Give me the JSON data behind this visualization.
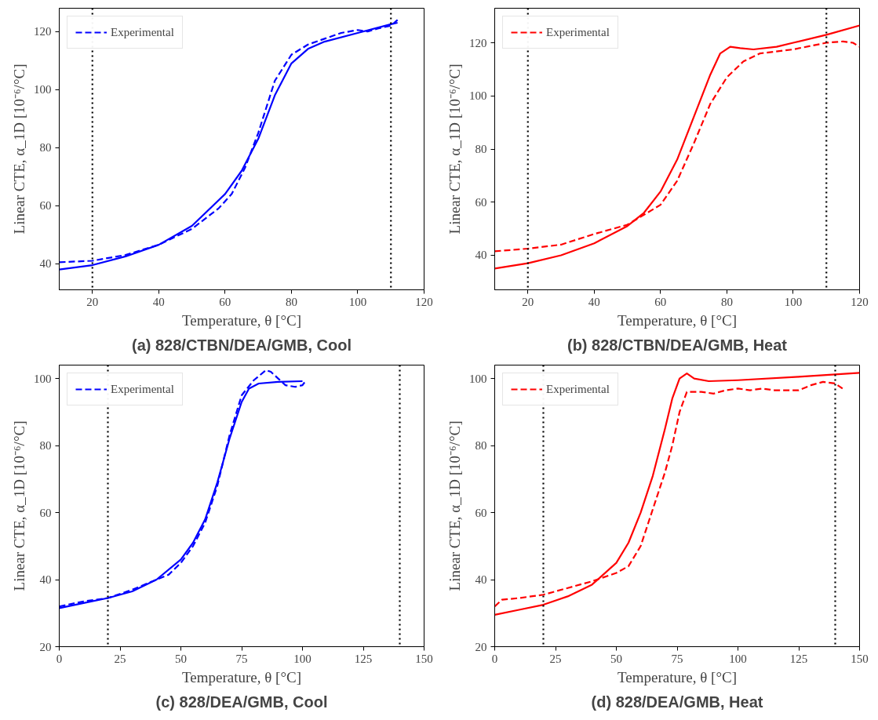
{
  "chart_data": [
    {
      "type": "line",
      "title": "(a) 828/CTBN/DEA/GMB, Cool",
      "xlabel": "Temperature, θ [°C]",
      "ylabel": "Linear CTE, α_1D [10⁻⁶/°C]",
      "xlim": [
        10,
        120
      ],
      "xticks": [
        20,
        40,
        60,
        80,
        100,
        120
      ],
      "ylim": [
        31,
        128
      ],
      "yticks": [
        40,
        60,
        80,
        100,
        120
      ],
      "grid": false,
      "legend": "top left",
      "ref_lines": [
        {
          "axis": "x",
          "value": 20,
          "color": "#000000",
          "line_style": "dotted"
        },
        {
          "axis": "x",
          "value": 110,
          "color": "#000000",
          "line_style": "dotted"
        }
      ],
      "series": [
        {
          "color": "#0000ff",
          "line_style": "solid",
          "x": [
            10,
            20,
            30,
            40,
            50,
            60,
            65,
            70,
            75,
            80,
            85,
            90,
            100,
            110,
            112
          ],
          "values": [
            38,
            39.5,
            42.5,
            46.5,
            53,
            64,
            72,
            83,
            98,
            109,
            114,
            116.5,
            119.5,
            122.5,
            123
          ]
        },
        {
          "name": "Experimental",
          "color": "#0000ff",
          "line_style": "dashed",
          "x": [
            10,
            20,
            30,
            40,
            50,
            58,
            62,
            66,
            70,
            75,
            80,
            85,
            90,
            95,
            100,
            103,
            106,
            110,
            112
          ],
          "values": [
            40.5,
            41,
            43,
            46.5,
            52,
            59,
            64,
            73,
            85,
            103,
            112,
            115.5,
            117.5,
            119.5,
            120.5,
            120,
            121,
            122,
            124
          ]
        }
      ]
    },
    {
      "type": "line",
      "title": "(b) 828/CTBN/DEA/GMB, Heat",
      "xlabel": "Temperature, θ [°C]",
      "ylabel": "Linear CTE, α_1D [10⁻⁶/°C]",
      "xlim": [
        10,
        120
      ],
      "xticks": [
        20,
        40,
        60,
        80,
        100,
        120
      ],
      "ylim": [
        27,
        133
      ],
      "yticks": [
        40,
        60,
        80,
        100,
        120
      ],
      "grid": false,
      "legend": "top left",
      "ref_lines": [
        {
          "axis": "x",
          "value": 20,
          "color": "#000000",
          "line_style": "dotted"
        },
        {
          "axis": "x",
          "value": 110,
          "color": "#000000",
          "line_style": "dotted"
        }
      ],
      "series": [
        {
          "color": "#ff0000",
          "line_style": "solid",
          "x": [
            10,
            20,
            30,
            40,
            50,
            55,
            60,
            65,
            70,
            75,
            78,
            81,
            84,
            88,
            95,
            100,
            110,
            120
          ],
          "values": [
            35,
            37,
            40,
            44.5,
            51,
            56,
            64,
            76,
            92,
            108,
            116,
            118.5,
            118,
            117.5,
            118.5,
            120,
            123,
            126.5
          ]
        },
        {
          "name": "Experimental",
          "color": "#ff0000",
          "line_style": "dashed",
          "x": [
            10,
            20,
            30,
            40,
            50,
            60,
            65,
            70,
            75,
            80,
            85,
            90,
            100,
            110,
            115,
            118,
            120
          ],
          "values": [
            41.5,
            42.5,
            44,
            48,
            51.5,
            59,
            68,
            82,
            97,
            107,
            113,
            116,
            117.5,
            120,
            120.5,
            120,
            118.5
          ]
        }
      ]
    },
    {
      "type": "line",
      "title": "(c) 828/DEA/GMB, Cool",
      "xlabel": "Temperature, θ [°C]",
      "ylabel": "Linear CTE, α_1D [10⁻⁶/°C]",
      "xlim": [
        0,
        150
      ],
      "xticks": [
        0,
        25,
        50,
        75,
        100,
        125,
        150
      ],
      "ylim": [
        20,
        104
      ],
      "yticks": [
        20,
        40,
        60,
        80,
        100
      ],
      "grid": false,
      "legend": "top left",
      "ref_lines": [
        {
          "axis": "x",
          "value": 20,
          "color": "#000000",
          "line_style": "dotted"
        },
        {
          "axis": "x",
          "value": 140,
          "color": "#000000",
          "line_style": "dotted"
        }
      ],
      "series": [
        {
          "color": "#0000ff",
          "line_style": "solid",
          "x": [
            0,
            10,
            20,
            30,
            40,
            50,
            55,
            60,
            65,
            70,
            75,
            78,
            82,
            90,
            100
          ],
          "values": [
            31.5,
            33,
            34.5,
            36.5,
            40,
            46,
            51,
            58,
            69,
            82,
            93,
            97,
            98.5,
            99,
            99.2
          ]
        },
        {
          "name": "Experimental",
          "color": "#0000ff",
          "line_style": "dashed",
          "x": [
            0,
            10,
            20,
            30,
            40,
            45,
            50,
            55,
            60,
            65,
            70,
            75,
            80,
            85,
            87,
            90,
            93,
            97,
            100,
            101
          ],
          "values": [
            32,
            33.5,
            34.5,
            37,
            40,
            41.5,
            45,
            50,
            57,
            68,
            83,
            95,
            99.5,
            102.5,
            102,
            100,
            98,
            97.5,
            98,
            99
          ]
        }
      ]
    },
    {
      "type": "line",
      "title": "(d) 828/DEA/GMB, Heat",
      "xlabel": "Temperature, θ [°C]",
      "ylabel": "Linear CTE, α_1D [10⁻⁶/°C]",
      "xlim": [
        0,
        150
      ],
      "xticks": [
        0,
        25,
        50,
        75,
        100,
        125,
        150
      ],
      "ylim": [
        20,
        104
      ],
      "yticks": [
        20,
        40,
        60,
        80,
        100
      ],
      "grid": false,
      "legend": "top left",
      "ref_lines": [
        {
          "axis": "x",
          "value": 20,
          "color": "#000000",
          "line_style": "dotted"
        },
        {
          "axis": "x",
          "value": 140,
          "color": "#000000",
          "line_style": "dotted"
        }
      ],
      "series": [
        {
          "color": "#ff0000",
          "line_style": "solid",
          "x": [
            0,
            10,
            20,
            30,
            40,
            50,
            55,
            60,
            65,
            70,
            73,
            76,
            79,
            82,
            88,
            100,
            125,
            150
          ],
          "values": [
            29.5,
            31,
            32.5,
            35,
            38.5,
            45,
            51,
            60,
            71,
            85,
            94,
            100,
            101.5,
            100,
            99.2,
            99.5,
            100.5,
            101.7
          ]
        },
        {
          "name": "Experimental",
          "color": "#ff0000",
          "line_style": "dashed",
          "x": [
            0,
            3,
            10,
            20,
            30,
            40,
            50,
            55,
            60,
            65,
            70,
            73,
            76,
            79,
            85,
            90,
            95,
            100,
            105,
            110,
            115,
            125,
            130,
            135,
            140,
            143
          ],
          "values": [
            32,
            34,
            34.5,
            35.5,
            37.5,
            39.5,
            42,
            44,
            50,
            61,
            72,
            80,
            90,
            96,
            96,
            95.5,
            96.5,
            97,
            96.5,
            97,
            96.5,
            96.5,
            98,
            99,
            98.5,
            97
          ]
        }
      ]
    }
  ]
}
